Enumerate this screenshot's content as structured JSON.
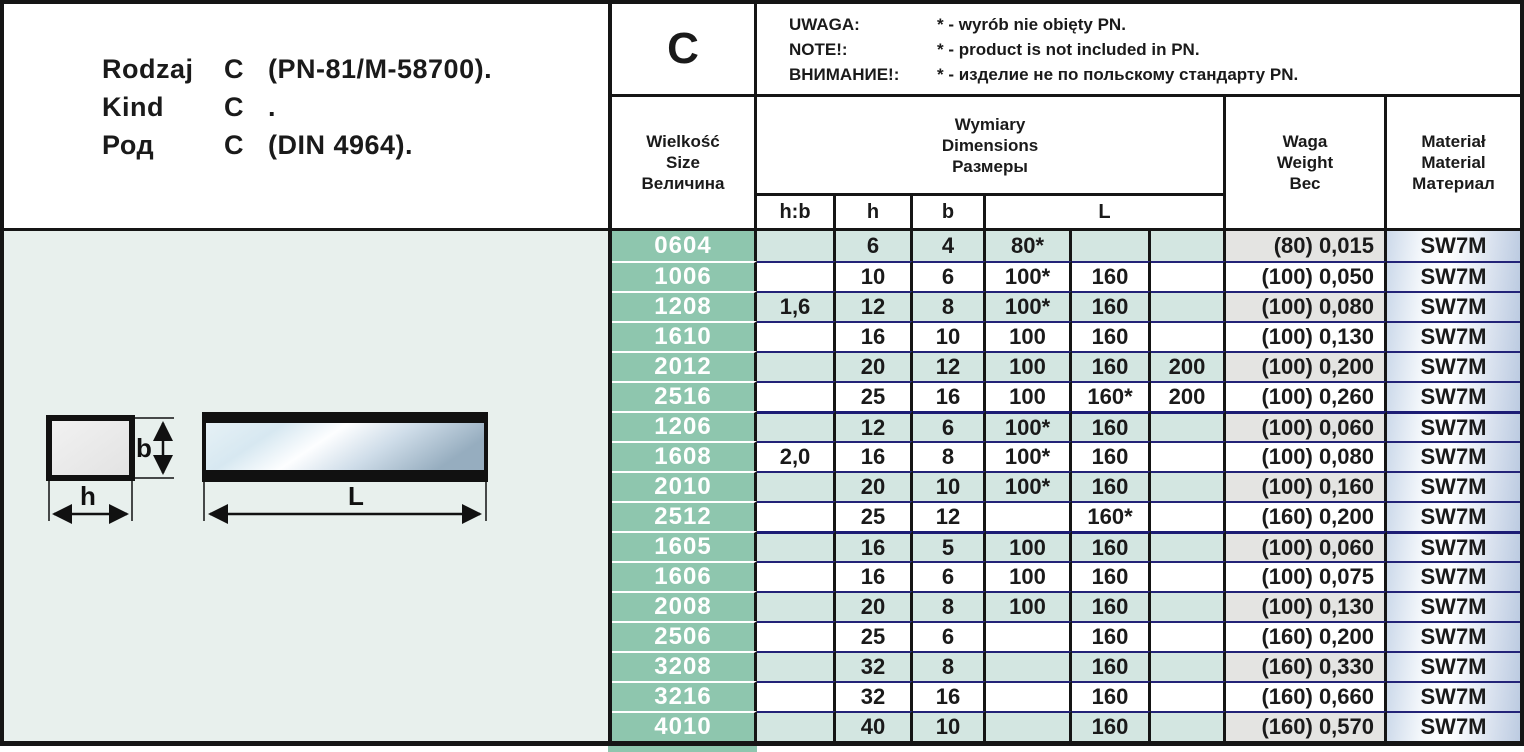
{
  "title": {
    "rows": [
      {
        "label": "Rodzaj",
        "letter": "C",
        "suffix": "(PN-81/M-58700)."
      },
      {
        "label": "Kind",
        "letter": "C",
        "suffix": "."
      },
      {
        "label": "Род",
        "letter": "C",
        "suffix": "(DIN 4964)."
      }
    ]
  },
  "type_box": {
    "letter": "C"
  },
  "notes": {
    "items": [
      {
        "prefix": "UWAGA:",
        "text": "* - wyrób  nie  obięty PN."
      },
      {
        "prefix": "NOTE!:",
        "text": "* - product is not included in PN."
      },
      {
        "prefix": "ВНИМАНИЕ!:",
        "text": "* - изделие не по польскому стандарту PN."
      }
    ]
  },
  "table": {
    "headers": {
      "size_lines": [
        "Wielkość",
        "Size",
        "Величина"
      ],
      "dimensions_lines": [
        "Wymiary",
        "Dimensions",
        "Размеры"
      ],
      "weight_lines": [
        "Waga",
        "Weight",
        "Вес"
      ],
      "material_lines": [
        "Materiał",
        "Material",
        "Материал"
      ],
      "sub": {
        "hb": "h:b",
        "h": "h",
        "b": "b",
        "L": "L"
      }
    },
    "rows": [
      {
        "size": "0604",
        "hb": "",
        "h": "6",
        "b": "4",
        "l1": "80*",
        "l2": "",
        "l3": "",
        "weight": "(80) 0,015",
        "material": "SW7M",
        "shade": true,
        "group": false
      },
      {
        "size": "1006",
        "hb": "",
        "h": "10",
        "b": "6",
        "l1": "100*",
        "l2": "160",
        "l3": "",
        "weight": "(100) 0,050",
        "material": "SW7M",
        "shade": false,
        "group": false
      },
      {
        "size": "1208",
        "hb": "1,6",
        "h": "12",
        "b": "8",
        "l1": "100*",
        "l2": "160",
        "l3": "",
        "weight": "(100) 0,080",
        "material": "SW7M",
        "shade": true,
        "group": false
      },
      {
        "size": "1610",
        "hb": "",
        "h": "16",
        "b": "10",
        "l1": "100",
        "l2": "160",
        "l3": "",
        "weight": "(100) 0,130",
        "material": "SW7M",
        "shade": false,
        "group": false
      },
      {
        "size": "2012",
        "hb": "",
        "h": "20",
        "b": "12",
        "l1": "100",
        "l2": "160",
        "l3": "200",
        "weight": "(100) 0,200",
        "material": "SW7M",
        "shade": true,
        "group": false
      },
      {
        "size": "2516",
        "hb": "",
        "h": "25",
        "b": "16",
        "l1": "100",
        "l2": "160*",
        "l3": "200",
        "weight": "(100) 0,260",
        "material": "SW7M",
        "shade": false,
        "group": false
      },
      {
        "size": "1206",
        "hb": "",
        "h": "12",
        "b": "6",
        "l1": "100*",
        "l2": "160",
        "l3": "",
        "weight": "(100) 0,060",
        "material": "SW7M",
        "shade": true,
        "group": true
      },
      {
        "size": "1608",
        "hb": "2,0",
        "h": "16",
        "b": "8",
        "l1": "100*",
        "l2": "160",
        "l3": "",
        "weight": "(100) 0,080",
        "material": "SW7M",
        "shade": false,
        "group": false
      },
      {
        "size": "2010",
        "hb": "",
        "h": "20",
        "b": "10",
        "l1": "100*",
        "l2": "160",
        "l3": "",
        "weight": "(100) 0,160",
        "material": "SW7M",
        "shade": true,
        "group": false
      },
      {
        "size": "2512",
        "hb": "",
        "h": "25",
        "b": "12",
        "l1": "",
        "l2": "160*",
        "l3": "",
        "weight": "(160) 0,200",
        "material": "SW7M",
        "shade": false,
        "group": false
      },
      {
        "size": "1605",
        "hb": "",
        "h": "16",
        "b": "5",
        "l1": "100",
        "l2": "160",
        "l3": "",
        "weight": "(100) 0,060",
        "material": "SW7M",
        "shade": true,
        "group": true
      },
      {
        "size": "1606",
        "hb": "",
        "h": "16",
        "b": "6",
        "l1": "100",
        "l2": "160",
        "l3": "",
        "weight": "(100) 0,075",
        "material": "SW7M",
        "shade": false,
        "group": false
      },
      {
        "size": "2008",
        "hb": "",
        "h": "20",
        "b": "8",
        "l1": "100",
        "l2": "160",
        "l3": "",
        "weight": "(100) 0,130",
        "material": "SW7M",
        "shade": true,
        "group": false
      },
      {
        "size": "2506",
        "hb": "",
        "h": "25",
        "b": "6",
        "l1": "",
        "l2": "160",
        "l3": "",
        "weight": "(160) 0,200",
        "material": "SW7M",
        "shade": false,
        "group": false
      },
      {
        "size": "3208",
        "hb": "",
        "h": "32",
        "b": "8",
        "l1": "",
        "l2": "160",
        "l3": "",
        "weight": "(160) 0,330",
        "material": "SW7M",
        "shade": true,
        "group": false
      },
      {
        "size": "3216",
        "hb": "",
        "h": "32",
        "b": "16",
        "l1": "",
        "l2": "160",
        "l3": "",
        "weight": "(160) 0,660",
        "material": "SW7M",
        "shade": false,
        "group": false
      },
      {
        "size": "4010",
        "hb": "",
        "h": "40",
        "b": "10",
        "l1": "",
        "l2": "160",
        "l3": "",
        "weight": "(160) 0,570",
        "material": "SW7M",
        "shade": true,
        "group": false
      }
    ]
  },
  "diagram": {
    "b_label": "b",
    "h_label": "h",
    "L_label": "L"
  },
  "colors": {
    "size_column": "#8ec6ae",
    "row_shade": "#d3e6e1",
    "weight_shade": "#e4e4e2",
    "row_line": "#232377",
    "panel_bg": "#e8f0ed"
  }
}
